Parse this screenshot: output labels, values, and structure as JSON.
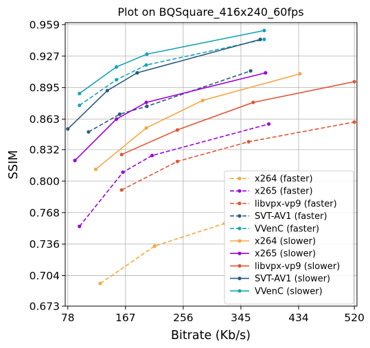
{
  "chart_data": {
    "type": "line",
    "title": "Plot on BQSquare_416x240_60fps",
    "xlabel": "Bitrate (Kb/s)",
    "ylabel": "SSIM",
    "xlim": [
      74,
      524
    ],
    "ylim": [
      0.673,
      0.961
    ],
    "xticks": [
      78,
      167,
      256,
      345,
      434,
      520
    ],
    "xtick_labels": [
      "78",
      "167",
      "256",
      "345",
      "434",
      "520"
    ],
    "yticks": [
      0.673,
      0.704,
      0.736,
      0.768,
      0.8,
      0.832,
      0.863,
      0.895,
      0.927,
      0.959
    ],
    "ytick_labels": [
      "0.673",
      "0.704",
      "0.736",
      "0.768",
      "0.800",
      "0.832",
      "0.863",
      "0.895",
      "0.927",
      "0.959"
    ],
    "grid": true,
    "legend_position": "lower-right",
    "series": [
      {
        "name": "x264 (faster)",
        "color": "#f4a742",
        "dash": "dashed",
        "x": [
          128,
          212,
          320,
          385
        ],
        "y": [
          0.696,
          0.734,
          0.757,
          0.768
        ]
      },
      {
        "name": "x265 (faster)",
        "color": "#9b00e0",
        "dash": "dashed",
        "x": [
          96,
          163,
          208,
          388
        ],
        "y": [
          0.754,
          0.809,
          0.826,
          0.858
        ]
      },
      {
        "name": "libvpx-vp9 (faster)",
        "color": "#e05535",
        "dash": "dashed",
        "x": [
          161,
          247,
          357,
          520
        ],
        "y": [
          0.791,
          0.82,
          0.84,
          0.86
        ]
      },
      {
        "name": "SVT-AV1 (faster)",
        "color": "#2a5a7c",
        "dash": "dashed",
        "x": [
          110,
          158,
          200,
          360
        ],
        "y": [
          0.85,
          0.868,
          0.876,
          0.912
        ]
      },
      {
        "name": "VVenC (faster)",
        "color": "#17a4b3",
        "dash": "dashed",
        "x": [
          96,
          153,
          199,
          381
        ],
        "y": [
          0.877,
          0.903,
          0.918,
          0.944
        ]
      },
      {
        "name": "x264 (slower)",
        "color": "#f4a742",
        "dash": "solid",
        "x": [
          121,
          199,
          286,
          436
        ],
        "y": [
          0.812,
          0.854,
          0.882,
          0.909
        ]
      },
      {
        "name": "x265 (slower)",
        "color": "#9b00e0",
        "dash": "solid",
        "x": [
          89,
          153,
          199,
          383
        ],
        "y": [
          0.821,
          0.863,
          0.88,
          0.91
        ]
      },
      {
        "name": "libvpx-vp9 (slower)",
        "color": "#e05535",
        "dash": "solid",
        "x": [
          161,
          247,
          364,
          520
        ],
        "y": [
          0.827,
          0.852,
          0.88,
          0.901
        ]
      },
      {
        "name": "SVT-AV1 (slower)",
        "color": "#2a5a7c",
        "dash": "solid",
        "x": [
          78,
          139,
          185,
          375
        ],
        "y": [
          0.853,
          0.892,
          0.91,
          0.944
        ]
      },
      {
        "name": "VVenC (slower)",
        "color": "#17a4b3",
        "dash": "solid",
        "x": [
          96,
          153,
          200,
          381
        ],
        "y": [
          0.889,
          0.916,
          0.929,
          0.953
        ]
      }
    ]
  }
}
